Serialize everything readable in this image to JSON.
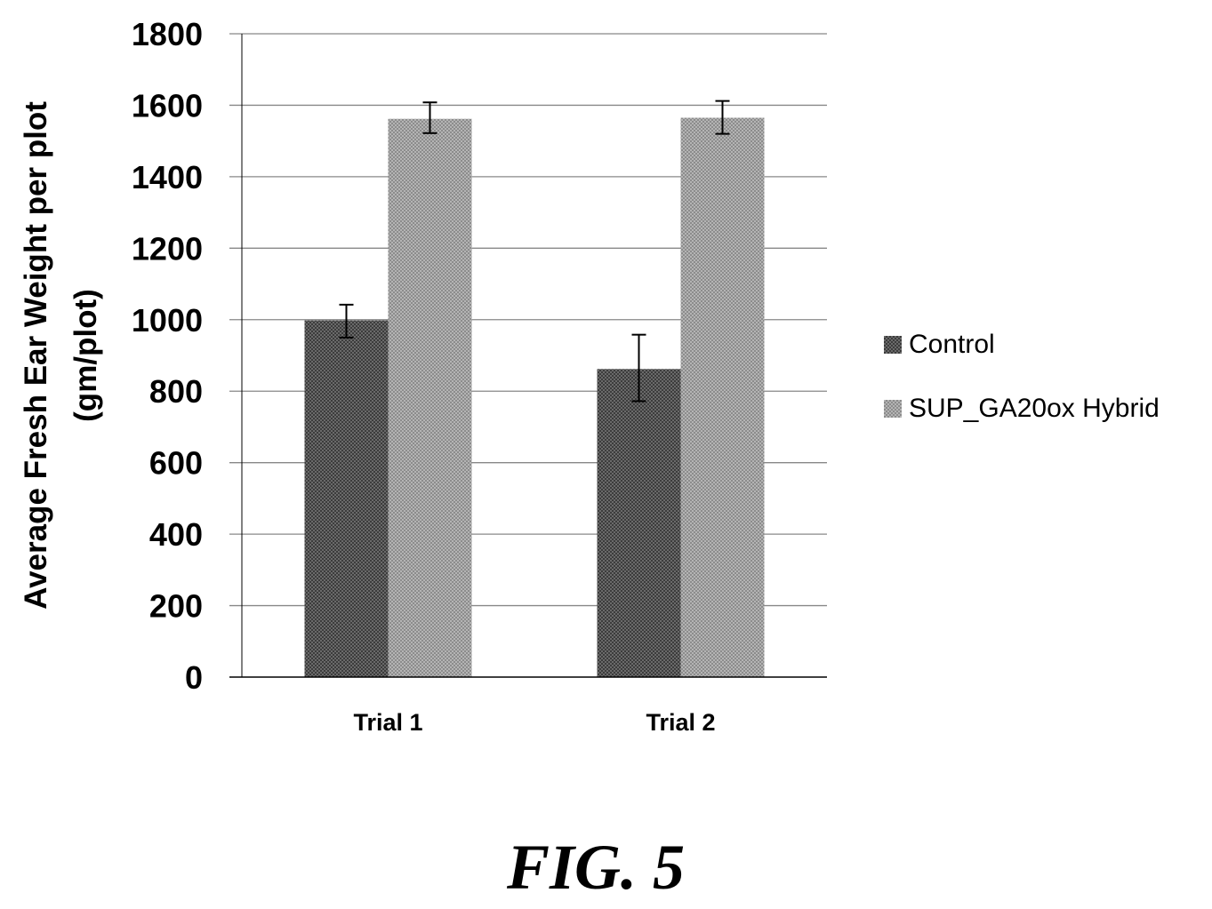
{
  "chart_data": {
    "type": "bar",
    "categories": [
      "Trial 1",
      "Trial 2"
    ],
    "series": [
      {
        "name": "Control",
        "values": [
          998,
          862
        ],
        "error": [
          [
            950,
            1042
          ],
          [
            772,
            958
          ]
        ],
        "fill": "#555555"
      },
      {
        "name": "SUP_GA20ox Hybrid",
        "values": [
          1562,
          1565
        ],
        "error": [
          [
            1522,
            1608
          ],
          [
            1520,
            1612
          ]
        ],
        "fill": "#9a9a9a"
      }
    ],
    "title": "",
    "ylabel": [
      "Average Fresh Ear Weight per plot",
      "(gm/plot)"
    ],
    "xlabel": "",
    "ylim": [
      0,
      1800
    ],
    "yticks": [
      "0",
      "200",
      "400",
      "600",
      "800",
      "1000",
      "1200",
      "1400",
      "1600",
      "1800"
    ],
    "grid": true,
    "legend_position": "right"
  },
  "caption": "FIG. 5"
}
